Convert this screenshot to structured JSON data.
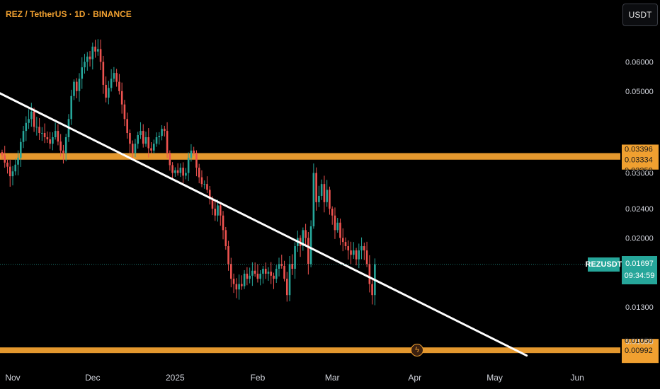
{
  "header": {
    "title": "REZ / TetherUS · 1D · BINANCE"
  },
  "toolbar": {
    "currency_label": "USDT",
    "lightning_icon": "lightning-icon"
  },
  "last_price": {
    "symbol": "REZUSDT",
    "price": "0.01697",
    "countdown": "09:34:59",
    "color": "#26a69a"
  },
  "colors": {
    "up": "#26a69a",
    "down": "#ef5350",
    "zone": "#f0a030",
    "trendline": "#ffffff"
  },
  "chart_data": {
    "type": "candlestick",
    "title": "REZ / TetherUS · 1D · BINANCE",
    "y_scale": "log",
    "y_ticks": [
      "0.06000",
      "0.05000",
      "0.03000",
      "0.02400",
      "0.02000",
      "0.01300",
      "0.01050"
    ],
    "x_ticks": [
      "Nov",
      "Dec",
      "2025",
      "Feb",
      "Mar",
      "Apr",
      "May",
      "Jun"
    ],
    "x_tick_dates": [
      "2024-11-01",
      "2024-12-01",
      "2025-01-01",
      "2025-02-01",
      "2025-03-01",
      "2025-04-01",
      "2025-05-01",
      "2025-06-01"
    ],
    "horizontal_zones": [
      {
        "label_top": "0.03396",
        "label_mid": "0.03334",
        "label_bottom": "0.03259",
        "low": 0.03259,
        "high": 0.03396
      },
      {
        "label_top": "0.01050",
        "label_mid": "0.00992",
        "low": 0.00975,
        "high": 0.0101
      }
    ],
    "trendline": {
      "from": {
        "date": "2024-10-27",
        "price": 0.0494
      },
      "to": {
        "date": "2025-05-13",
        "price": 0.0096
      }
    },
    "last_price": 0.01697,
    "start_date": "2024-10-28",
    "closes": [
      0.0335,
      0.032,
      0.0312,
      0.0294,
      0.0303,
      0.0316,
      0.033,
      0.0364,
      0.039,
      0.041,
      0.042,
      0.044,
      0.04,
      0.04,
      0.0385,
      0.0385,
      0.0375,
      0.037,
      0.036,
      0.0375,
      0.039,
      0.0365,
      0.0345,
      0.034,
      0.0375,
      0.042,
      0.0485,
      0.053,
      0.05,
      0.054,
      0.058,
      0.06,
      0.062,
      0.061,
      0.066,
      0.064,
      0.065,
      0.06,
      0.052,
      0.048,
      0.051,
      0.054,
      0.056,
      0.053,
      0.05,
      0.046,
      0.042,
      0.0385,
      0.036,
      0.034,
      0.036,
      0.038,
      0.039,
      0.036,
      0.0375,
      0.035,
      0.0345,
      0.036,
      0.0375,
      0.0378,
      0.0395,
      0.039,
      0.034,
      0.0315,
      0.03,
      0.0305,
      0.03,
      0.031,
      0.0295,
      0.03,
      0.033,
      0.0345,
      0.034,
      0.031,
      0.0292,
      0.028,
      0.028,
      0.027,
      0.0255,
      0.024,
      0.023,
      0.0245,
      0.023,
      0.021,
      0.019,
      0.017,
      0.0155,
      0.015,
      0.0145,
      0.015,
      0.0148,
      0.016,
      0.0155,
      0.0158,
      0.0163,
      0.016,
      0.0155,
      0.016,
      0.0165,
      0.016,
      0.0162,
      0.0158,
      0.0155,
      0.0165,
      0.017,
      0.0168,
      0.0155,
      0.014,
      0.017,
      0.0165,
      0.019,
      0.02,
      0.019,
      0.021,
      0.02,
      0.017,
      0.0215,
      0.03,
      0.025,
      0.026,
      0.028,
      0.025,
      0.027,
      0.024,
      0.023,
      0.021,
      0.022,
      0.02,
      0.0195,
      0.019,
      0.0185,
      0.018,
      0.0185,
      0.0175,
      0.0185,
      0.019,
      0.0185,
      0.017,
      0.015,
      0.014,
      0.01697
    ]
  }
}
